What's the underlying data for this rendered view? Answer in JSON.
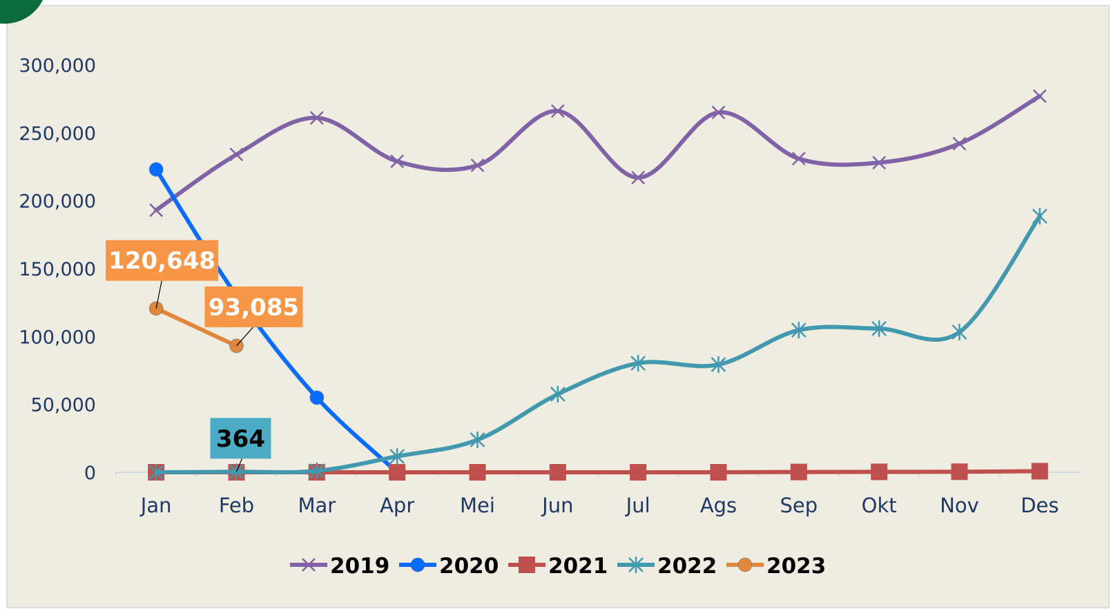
{
  "chart_data": {
    "type": "line",
    "categories": [
      "Jan",
      "Feb",
      "Mar",
      "Apr",
      "Mei",
      "Jun",
      "Jul",
      "Ags",
      "Sep",
      "Okt",
      "Nov",
      "Des"
    ],
    "series": [
      {
        "name": "2019",
        "color": "#7f63a6",
        "marker": "x",
        "smooth": true,
        "values": [
          193000,
          234000,
          261000,
          229000,
          226000,
          266000,
          217000,
          265000,
          231000,
          228000,
          242000,
          277000
        ]
      },
      {
        "name": "2020",
        "color": "#0a6cff",
        "marker": "circle",
        "smooth": true,
        "values": [
          223000,
          130000,
          55000,
          0,
          null,
          null,
          null,
          null,
          null,
          null,
          null,
          null
        ]
      },
      {
        "name": "2021",
        "color": "#c0504d",
        "marker": "square",
        "smooth": true,
        "values": [
          0,
          0,
          0,
          0,
          0,
          0,
          0,
          0,
          200,
          300,
          400,
          800
        ]
      },
      {
        "name": "2022",
        "color": "#4298ad",
        "marker": "asterisk",
        "smooth": true,
        "values": [
          0,
          364,
          1000,
          11700,
          23900,
          57500,
          80300,
          79300,
          104700,
          105800,
          103200,
          188600
        ]
      },
      {
        "name": "2023",
        "color": "#e0873e",
        "marker": "circle",
        "smooth": false,
        "values": [
          120648,
          93085,
          null,
          null,
          null,
          null,
          null,
          null,
          null,
          null,
          null,
          null
        ],
        "value_labels": [
          "120,648",
          "93,085",
          null,
          null,
          null,
          null,
          null,
          null,
          null,
          null,
          null,
          null
        ]
      }
    ],
    "ylim": [
      0,
      300000
    ],
    "yticks": [
      0,
      {
        "value": 50000,
        "label": "50,000"
      },
      {
        "value": 100000,
        "label": "100,000"
      },
      {
        "value": 150000,
        "label": "150,000"
      },
      {
        "value": 200000,
        "label": "200,000"
      },
      {
        "value": 250000,
        "label": "250,000"
      },
      {
        "value": 300000,
        "label": "300,000"
      }
    ],
    "legend": "bottom"
  }
}
